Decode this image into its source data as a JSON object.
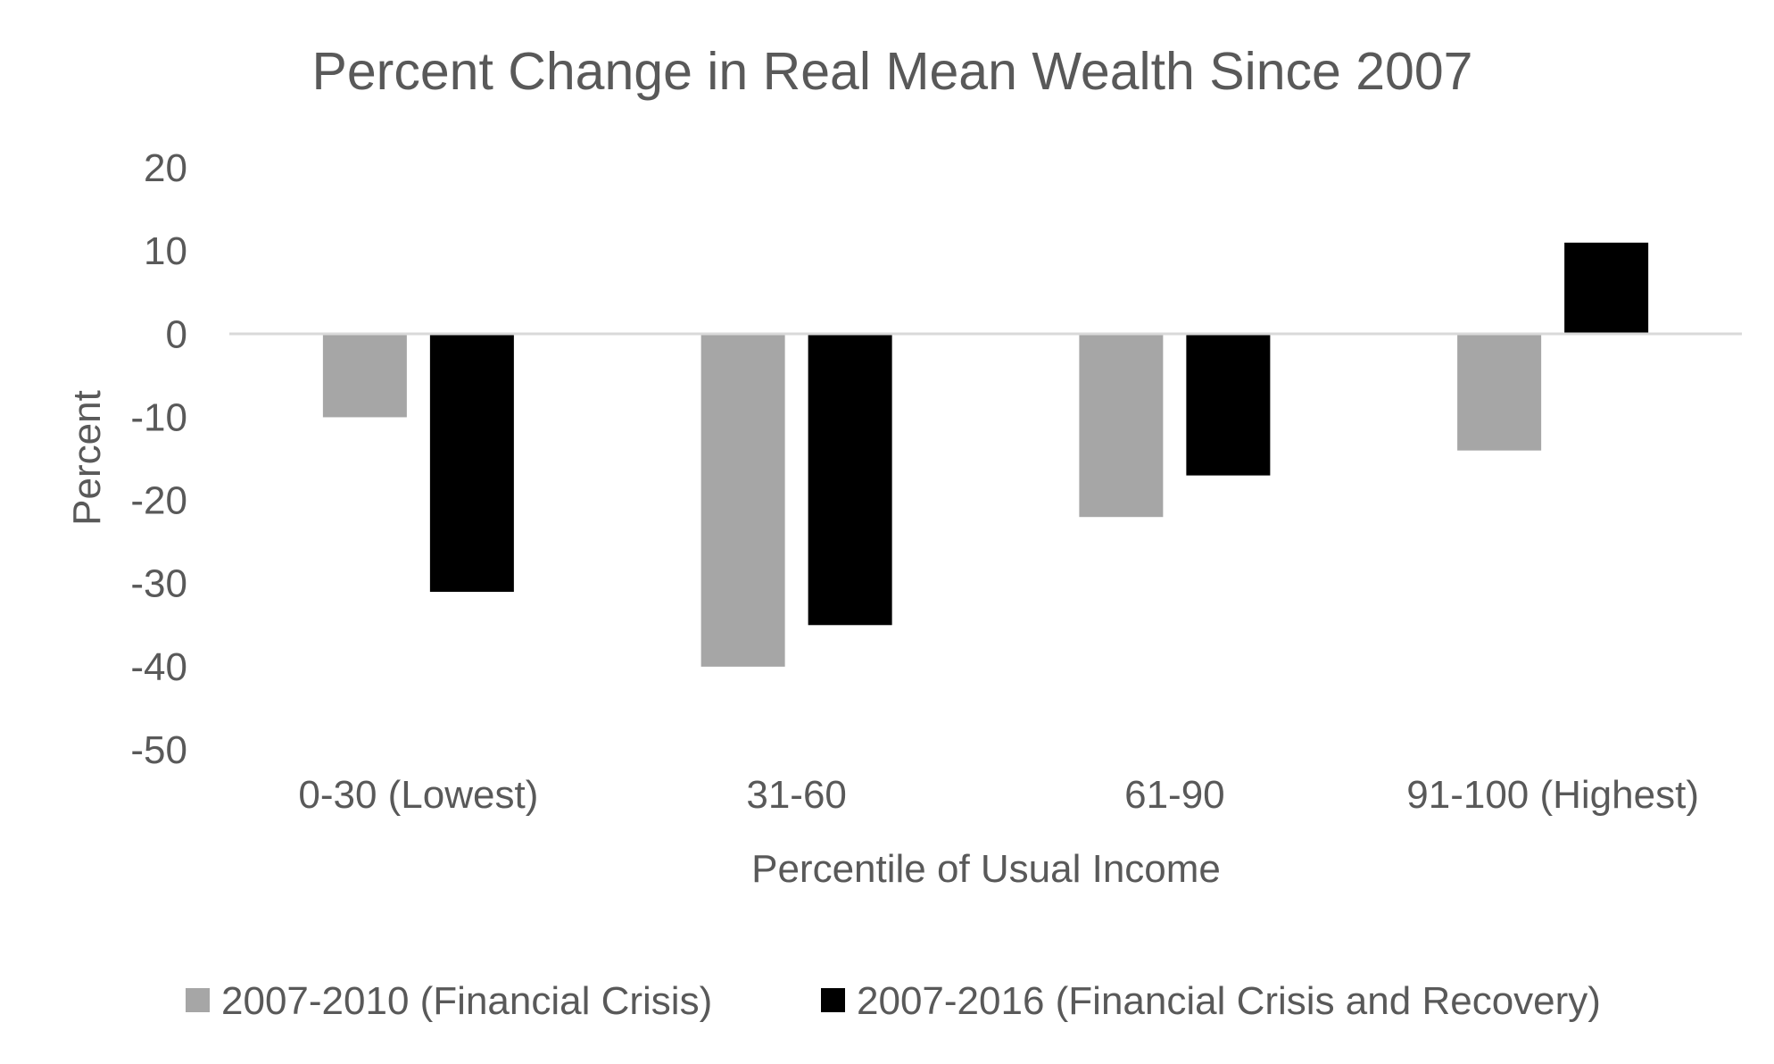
{
  "chart_data": {
    "type": "bar",
    "title": "Percent Change in Real Mean Wealth Since 2007",
    "xlabel": "Percentile of Usual Income",
    "ylabel": "Percent",
    "ylim": [
      -50,
      20
    ],
    "yticks": [
      20,
      10,
      0,
      -10,
      -20,
      -30,
      -40,
      -50
    ],
    "yticklabels": [
      "20",
      "10",
      "0",
      "-10",
      "-20",
      "-30",
      "-40",
      "-50"
    ],
    "grid": false,
    "legend_position": "bottom",
    "categories": [
      "0-30 (Lowest)",
      "31-60",
      "61-90",
      "91-100 (Highest)"
    ],
    "series": [
      {
        "name": "2007-2010 (Financial Crisis)",
        "color": "#a6a6a6",
        "values": [
          -10,
          -40,
          -22,
          -14
        ]
      },
      {
        "name": "2007-2016 (Financial Crisis and Recovery)",
        "color": "#000000",
        "values": [
          -31,
          -35,
          -17,
          11
        ]
      }
    ],
    "colors": {
      "text": "#595959",
      "baseline": "#d9d9d9"
    }
  }
}
